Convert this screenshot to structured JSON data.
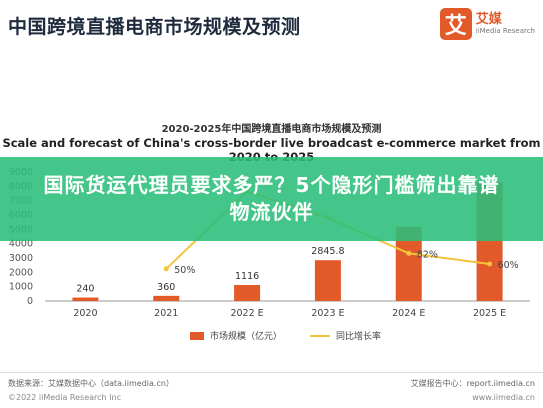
{
  "header": {
    "title": "中国跨境直播电商市场规模及预测",
    "logo_mark": "艾",
    "logo_cn": "艾媒",
    "logo_en": "iiMedia Research"
  },
  "overlay": {
    "headline": "国际货运代理员要求多严？5个隐形门槛筛出靠谱物流伙伴"
  },
  "footer": {
    "source": "数据来源：艾媒数据中心（data.iimedia.cn）",
    "report": "艾媒报告中心：report.iimedia.cn",
    "copyright": "©2022 iiMedia Research Inc",
    "site": "www.iimedia.cn"
  },
  "colors": {
    "bar": "#e2592a",
    "line": "#f2c53d",
    "overlay": "#2abe7a"
  },
  "chart_data": {
    "type": "bar",
    "title": "2020-2025年中国跨境直播电商市场规模及预测",
    "subtitle": "Scale and forecast of China's cross-border live broadcast e-commerce market from 2020 to 2025",
    "categories": [
      "2020",
      "2021",
      "2022 E",
      "2023 E",
      "2024 E",
      "2025 E"
    ],
    "y_ticks": [
      "0",
      "1000",
      "2000",
      "3000",
      "4000",
      "5000",
      "6000",
      "7000",
      "8000",
      "9000"
    ],
    "ylim": [
      0,
      9000
    ],
    "series": [
      {
        "name": "市场规模（亿元）",
        "type": "bar",
        "values": [
          240,
          360,
          1116,
          2845.8,
          5170,
          8290
        ],
        "labels": [
          "240",
          "360",
          "1116",
          "2845.8",
          "",
          ""
        ]
      },
      {
        "name": "同比增长率",
        "type": "line",
        "values": [
          null,
          50,
          210,
          155,
          82,
          60
        ],
        "labels": [
          "",
          "50%",
          "",
          "",
          "82%",
          "60%"
        ]
      }
    ],
    "legend_position": "bottom",
    "grid": false
  }
}
